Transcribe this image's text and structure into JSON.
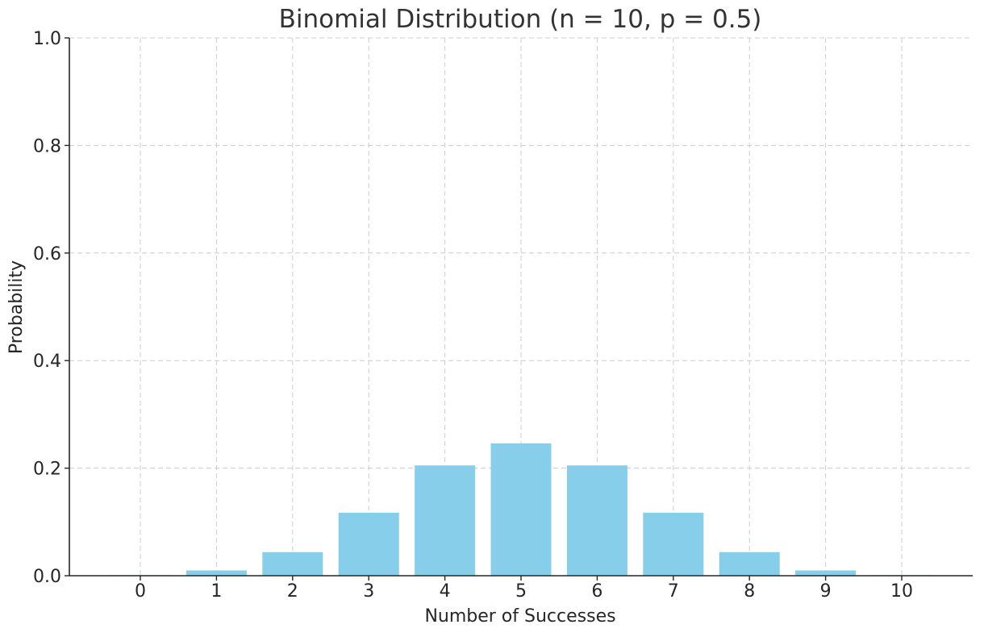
{
  "chart_data": {
    "type": "bar",
    "title": "Binomial Distribution (n = 10, p = 0.5)",
    "xlabel": "Number of Successes",
    "ylabel": "Probability",
    "categories": [
      "0",
      "1",
      "2",
      "3",
      "4",
      "5",
      "6",
      "7",
      "8",
      "9",
      "10"
    ],
    "values": [
      0.001,
      0.0098,
      0.0439,
      0.1172,
      0.2051,
      0.2461,
      0.2051,
      0.1172,
      0.0439,
      0.0098,
      0.001
    ],
    "ylim": [
      0,
      1.0
    ],
    "yticks": [
      "0.0",
      "0.2",
      "0.4",
      "0.6",
      "0.8",
      "1.0"
    ],
    "grid": true,
    "bar_color": "#87CEEB",
    "grid_color": "#cccccc"
  }
}
